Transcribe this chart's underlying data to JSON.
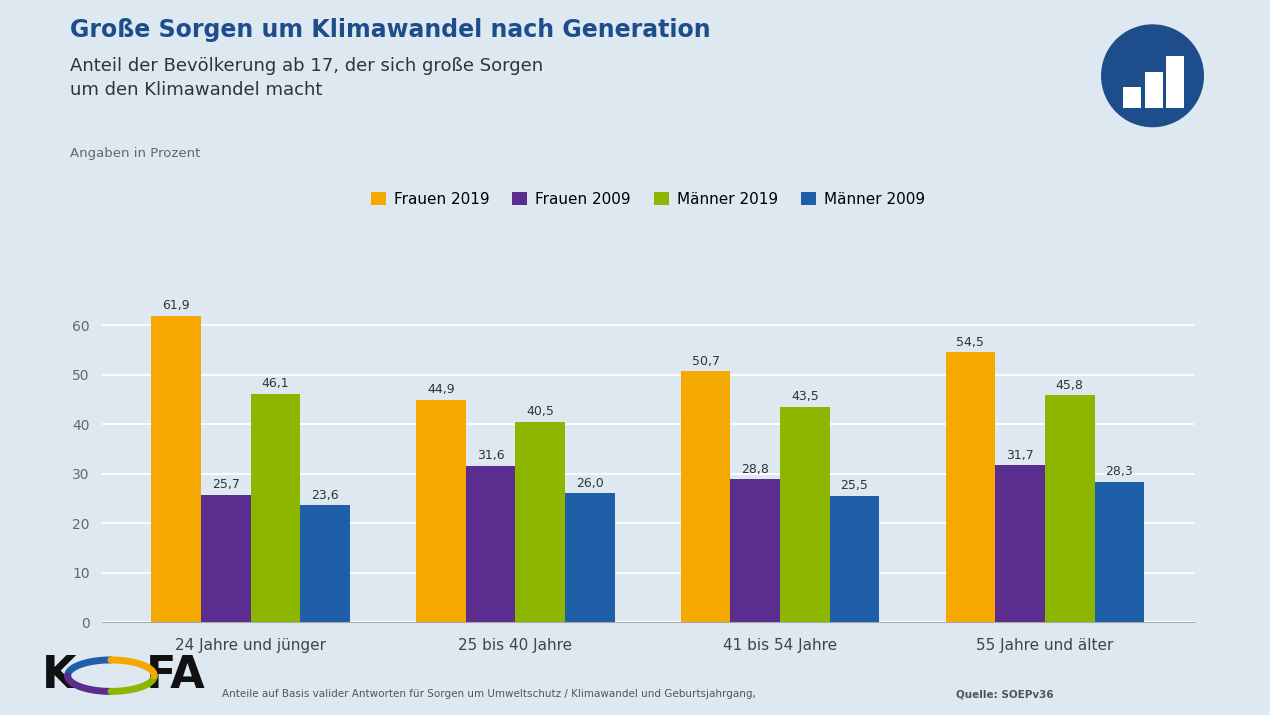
{
  "title": "Große Sorgen um Klimawandel nach Generation",
  "subtitle": "Anteil der Bevölkerung ab 17, der sich große Sorgen\num den Klimawandel macht",
  "unit_label": "Angaben in Prozent",
  "background_color": "#dde8f0",
  "categories": [
    "24 Jahre und jünger",
    "25 bis 40 Jahre",
    "41 bis 54 Jahre",
    "55 Jahre und älter"
  ],
  "series": [
    {
      "name": "Frauen 2019",
      "color": "#f5a800",
      "values": [
        61.9,
        44.9,
        50.7,
        54.5
      ]
    },
    {
      "name": "Frauen 2009",
      "color": "#5b2d8e",
      "values": [
        25.7,
        31.6,
        28.8,
        31.7
      ]
    },
    {
      "name": "Männer 2019",
      "color": "#8db600",
      "values": [
        46.1,
        40.5,
        43.5,
        45.8
      ]
    },
    {
      "name": "Männer 2009",
      "color": "#1e5fa8",
      "values": [
        23.6,
        26.0,
        25.5,
        28.3
      ]
    }
  ],
  "ylim": [
    0,
    65
  ],
  "yticks": [
    0,
    10,
    20,
    30,
    40,
    50,
    60
  ],
  "title_color": "#1e4d8c",
  "subtitle_color": "#333333",
  "unit_color": "#666666",
  "footer_text": "Anteile auf Basis valider Antworten für Sorgen um Umweltschutz / Klimawandel und Geburtsjahrgang,",
  "footer_bold": "Quelle:",
  "footer_source": "SOEPv36",
  "icon_color": "#1e4d8c"
}
